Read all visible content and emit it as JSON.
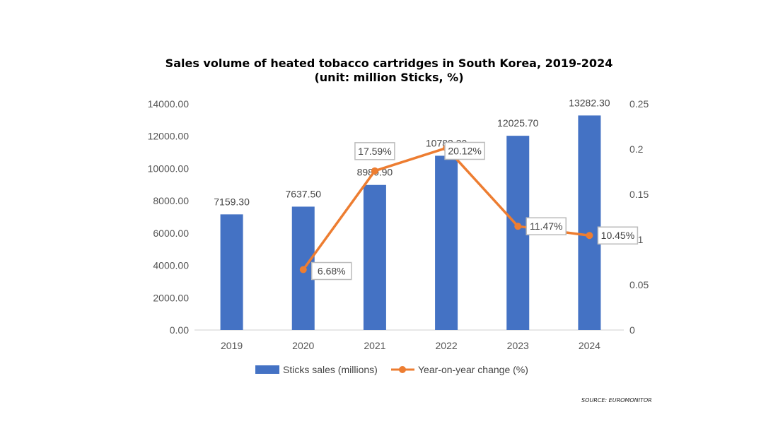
{
  "chart_data": {
    "type": "bar+line",
    "title": "Sales volume of heated tobacco cartridges in South Korea, 2019-2024",
    "subtitle": "(unit: million Sticks, %)",
    "categories": [
      "2019",
      "2020",
      "2021",
      "2022",
      "2023",
      "2024"
    ],
    "series": [
      {
        "name": "Sticks sales (millions)",
        "type": "bar",
        "axis": "left",
        "color": "#4472C4",
        "values": [
          7159.3,
          7637.5,
          8980.9,
          10788.3,
          12025.7,
          13282.3
        ],
        "labels": [
          "7159.30",
          "7637.50",
          "8980.90",
          "10788.30",
          "12025.70",
          "13282.30"
        ]
      },
      {
        "name": "Year-on-year change (%)",
        "type": "line",
        "axis": "right",
        "color": "#ED7D31",
        "values": [
          null,
          0.0668,
          0.1759,
          0.2012,
          0.1147,
          0.1045
        ],
        "labels": [
          null,
          "6.68%",
          "17.59%",
          "20.12%",
          "11.47%",
          "10.45%"
        ]
      }
    ],
    "y_left": {
      "range": [
        0,
        14000
      ],
      "ticks": [
        "0.00",
        "2000.00",
        "4000.00",
        "6000.00",
        "8000.00",
        "10000.00",
        "12000.00",
        "14000.00"
      ]
    },
    "y_right": {
      "range": [
        0,
        0.25
      ],
      "ticks": [
        "0",
        "0.05",
        "0.1",
        "0.15",
        "0.2",
        "0.25"
      ]
    },
    "grid": false,
    "legend": "bottom",
    "source": "SOURCE: EUROMONITOR"
  }
}
